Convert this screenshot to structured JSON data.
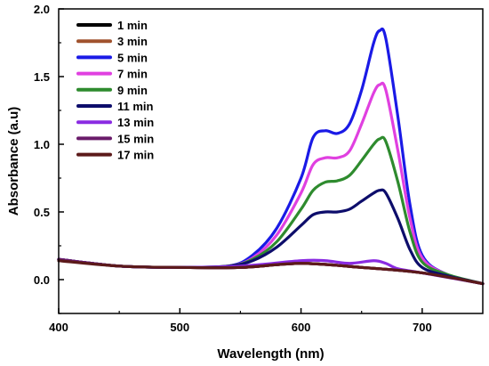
{
  "chart_data": {
    "type": "line",
    "xlabel": "Wavelength (nm)",
    "ylabel": "Absorbance (a.u)",
    "xlim": [
      400,
      750
    ],
    "ylim": [
      -0.25,
      2.0
    ],
    "x_ticks": [
      400,
      500,
      600,
      700
    ],
    "y_ticks": [
      "0.0",
      "0.5",
      "1.0",
      "1.5",
      "2.0"
    ],
    "grid": false,
    "legend_position": "top-left",
    "series": [
      {
        "name": "1 min",
        "color": "#000000",
        "x": [
          400,
          450,
          500,
          550,
          600,
          650,
          700,
          750
        ],
        "y": [
          0.15,
          0.1,
          0.09,
          0.09,
          0.12,
          0.09,
          0.05,
          -0.03
        ]
      },
      {
        "name": "3 min",
        "color": "#a0522d",
        "x": [
          400,
          450,
          500,
          550,
          600,
          650,
          700,
          750
        ],
        "y": [
          0.15,
          0.1,
          0.09,
          0.09,
          0.12,
          0.09,
          0.05,
          -0.03
        ]
      },
      {
        "name": "5 min",
        "color": "#1a1ae6",
        "x": [
          400,
          450,
          500,
          540,
          560,
          580,
          600,
          610,
          620,
          630,
          640,
          650,
          660,
          665,
          670,
          680,
          690,
          700,
          720,
          750
        ],
        "y": [
          0.15,
          0.1,
          0.09,
          0.1,
          0.18,
          0.38,
          0.75,
          1.05,
          1.1,
          1.08,
          1.15,
          1.4,
          1.75,
          1.84,
          1.78,
          1.2,
          0.55,
          0.18,
          0.04,
          -0.03
        ]
      },
      {
        "name": "7 min",
        "color": "#e040e0",
        "x": [
          400,
          450,
          500,
          540,
          560,
          580,
          600,
          610,
          620,
          630,
          640,
          650,
          660,
          665,
          670,
          680,
          690,
          700,
          720,
          750
        ],
        "y": [
          0.15,
          0.1,
          0.09,
          0.1,
          0.16,
          0.33,
          0.64,
          0.85,
          0.9,
          0.9,
          0.95,
          1.15,
          1.38,
          1.44,
          1.4,
          0.95,
          0.45,
          0.16,
          0.04,
          -0.03
        ]
      },
      {
        "name": "9 min",
        "color": "#2e8b2e",
        "x": [
          400,
          450,
          500,
          540,
          560,
          580,
          600,
          610,
          620,
          630,
          640,
          650,
          660,
          665,
          670,
          680,
          690,
          700,
          720,
          750
        ],
        "y": [
          0.15,
          0.1,
          0.09,
          0.1,
          0.15,
          0.28,
          0.52,
          0.66,
          0.72,
          0.73,
          0.77,
          0.88,
          1.0,
          1.04,
          1.02,
          0.72,
          0.35,
          0.13,
          0.04,
          -0.03
        ]
      },
      {
        "name": "11 min",
        "color": "#0d0d6b",
        "x": [
          400,
          450,
          500,
          540,
          560,
          580,
          600,
          610,
          620,
          630,
          640,
          650,
          660,
          665,
          670,
          680,
          690,
          700,
          720,
          750
        ],
        "y": [
          0.15,
          0.1,
          0.09,
          0.1,
          0.14,
          0.24,
          0.4,
          0.48,
          0.5,
          0.5,
          0.52,
          0.58,
          0.64,
          0.66,
          0.64,
          0.45,
          0.22,
          0.09,
          0.03,
          -0.03
        ]
      },
      {
        "name": "13 min",
        "color": "#8a2be2",
        "x": [
          400,
          450,
          500,
          550,
          600,
          620,
          640,
          660,
          670,
          680,
          700,
          750
        ],
        "y": [
          0.15,
          0.1,
          0.09,
          0.1,
          0.14,
          0.14,
          0.12,
          0.14,
          0.12,
          0.08,
          0.05,
          -0.03
        ]
      },
      {
        "name": "15 min",
        "color": "#6a1b6a",
        "x": [
          400,
          450,
          500,
          550,
          600,
          650,
          700,
          750
        ],
        "y": [
          0.15,
          0.1,
          0.09,
          0.09,
          0.12,
          0.09,
          0.05,
          -0.03
        ]
      },
      {
        "name": "17 min",
        "color": "#5c1a1a",
        "x": [
          400,
          450,
          500,
          550,
          600,
          650,
          700,
          750
        ],
        "y": [
          0.14,
          0.1,
          0.09,
          0.09,
          0.12,
          0.09,
          0.05,
          -0.03
        ]
      }
    ]
  }
}
